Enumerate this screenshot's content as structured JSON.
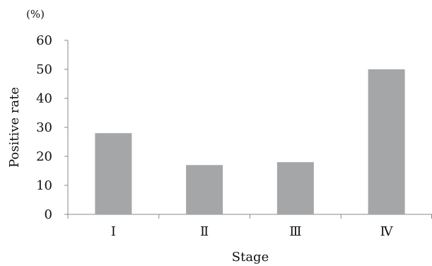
{
  "chart_data": {
    "type": "bar",
    "categories": [
      "Ⅰ",
      "Ⅱ",
      "Ⅲ",
      "Ⅳ"
    ],
    "values": [
      28,
      17,
      18,
      50
    ],
    "title": "",
    "xlabel": "Stage",
    "ylabel": "Positive rate",
    "unit_label": "(%)",
    "ylim": [
      0,
      60
    ],
    "yticks": [
      0,
      10,
      20,
      30,
      40,
      50,
      60
    ],
    "grid": false,
    "bar_color": "#a5a6a8",
    "axis_color": "#888888"
  }
}
